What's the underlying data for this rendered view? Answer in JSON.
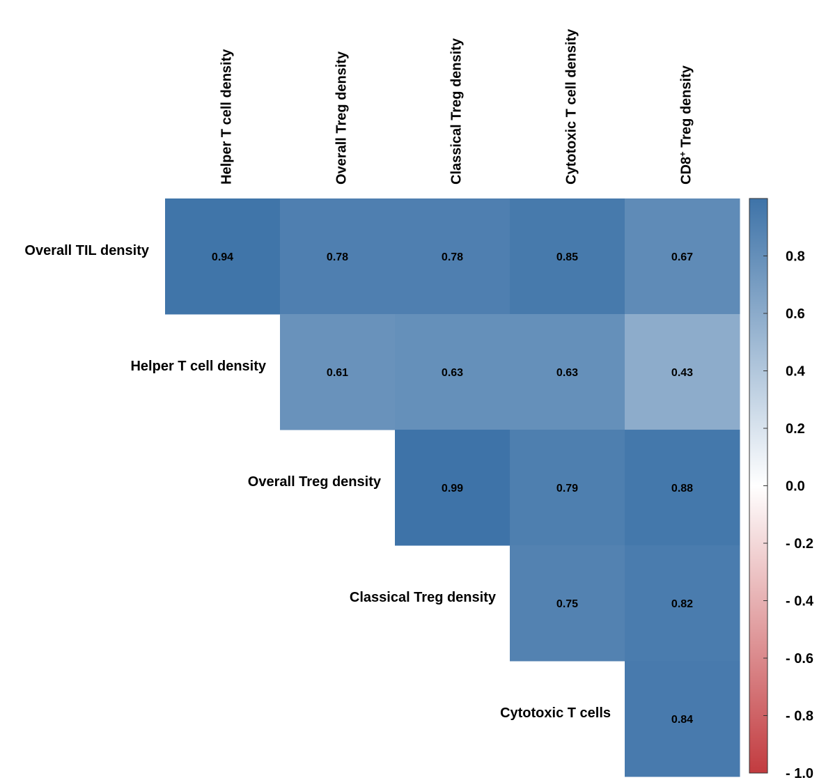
{
  "chart_data": {
    "type": "heatmap",
    "columns": [
      {
        "main": "Helper T cell density",
        "sup": ""
      },
      {
        "main": "Overall Treg density",
        "sup": ""
      },
      {
        "main": "Classical Treg density",
        "sup": ""
      },
      {
        "main": "Cytotoxic T cell density",
        "sup": ""
      },
      {
        "pre": "CD8",
        "sup": "+",
        "post": " Treg density"
      }
    ],
    "rows": [
      "Overall TIL density",
      "Helper T cell density",
      "Overall Treg density",
      "Classical Treg density",
      "Cytotoxic T cells"
    ],
    "values": [
      [
        0.94,
        0.78,
        0.78,
        0.85,
        0.67
      ],
      [
        null,
        0.61,
        0.63,
        0.63,
        0.43
      ],
      [
        null,
        null,
        0.99,
        0.79,
        0.88
      ],
      [
        null,
        null,
        null,
        0.75,
        0.82
      ],
      [
        null,
        null,
        null,
        null,
        0.84
      ]
    ],
    "value_labels": [
      [
        "0.94",
        "0.78",
        "0.78",
        "0.85",
        "0.67"
      ],
      [
        "",
        "0.61",
        "0.63",
        "0.63",
        "0.43"
      ],
      [
        "",
        "",
        "0.99",
        "0.79",
        "0.88"
      ],
      [
        "",
        "",
        "",
        "0.75",
        "0.82"
      ],
      [
        "",
        "",
        "",
        "",
        "0.84"
      ]
    ],
    "colorbar": {
      "range": [
        -1.0,
        1.0
      ],
      "ticks": [
        {
          "value": 0.8,
          "label": "0.8"
        },
        {
          "value": 0.6,
          "label": "0.6"
        },
        {
          "value": 0.4,
          "label": "0.4"
        },
        {
          "value": 0.2,
          "label": "0.2"
        },
        {
          "value": 0.0,
          "label": "0.0"
        },
        {
          "value": -0.2,
          "label": "- 0.2"
        },
        {
          "value": -0.4,
          "label": "- 0.4"
        },
        {
          "value": -0.6,
          "label": "- 0.6"
        },
        {
          "value": -0.8,
          "label": "- 0.8"
        },
        {
          "value": -1.0,
          "label": "- 1.0"
        }
      ],
      "color_negative": "#c23b3f",
      "color_zero": "#ffffff",
      "color_positive": "#3e73a8"
    }
  }
}
